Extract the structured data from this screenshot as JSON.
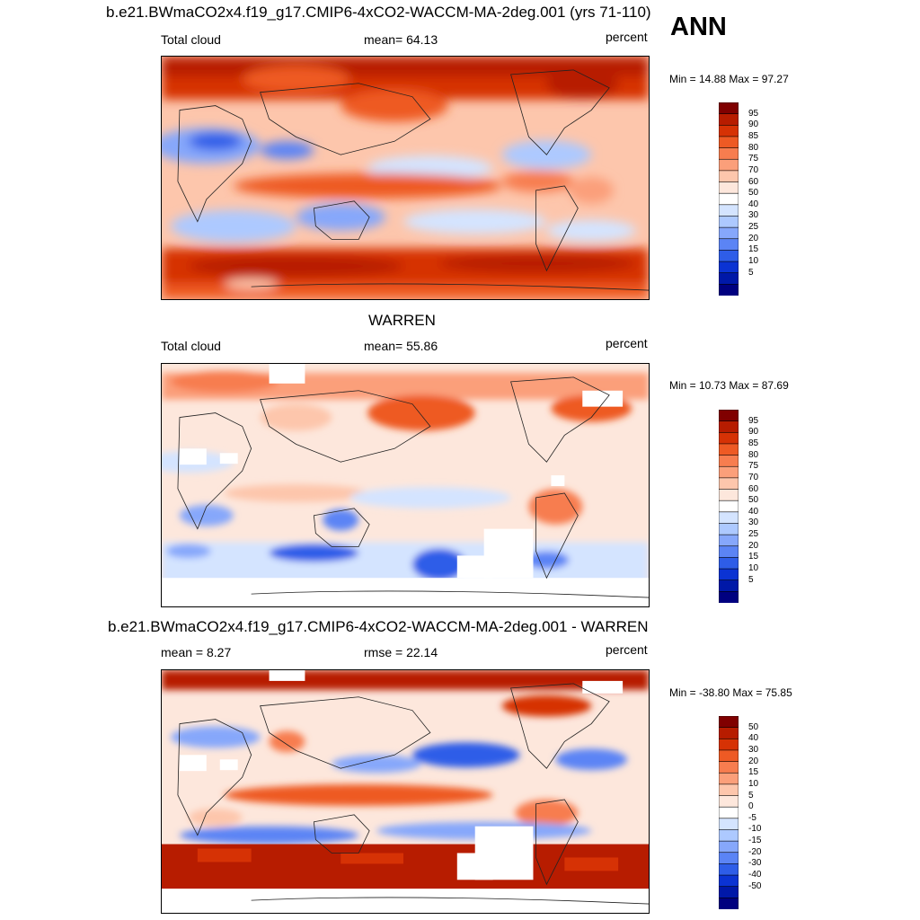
{
  "figure": {
    "title": "b.e21.BWmaCO2x4.f19_g17.CMIP6-4xCO2-WACCM-MA-2deg.001 (yrs 71-110)",
    "season": "ANN"
  },
  "panel1": {
    "left_label": "Total cloud",
    "center_label": "mean=  64.13",
    "right_label": "percent",
    "range_label": "Min =  14.88 Max =  97.27"
  },
  "panel2": {
    "title": "WARREN",
    "left_label": "Total cloud",
    "center_label": "mean=  55.86",
    "right_label": "percent",
    "range_label": "Min =  10.73 Max =  87.69"
  },
  "panel3": {
    "title": "b.e21.BWmaCO2x4.f19_g17.CMIP6-4xCO2-WACCM-MA-2deg.001 - WARREN",
    "left_label": "mean =   8.27",
    "center_label": "rmse =  22.14",
    "right_label": "percent",
    "range_label": "Min = -38.80 Max =  75.85"
  },
  "colorbar_abs": {
    "levels": [
      "95",
      "90",
      "85",
      "80",
      "75",
      "70",
      "60",
      "50",
      "40",
      "30",
      "25",
      "20",
      "15",
      "10",
      "5"
    ],
    "colors": [
      "#800000",
      "#b71c00",
      "#d63205",
      "#ee5a24",
      "#f77d4f",
      "#fb9f7a",
      "#fdc6ac",
      "#fde7dc",
      "#ffffff",
      "#d4e4ff",
      "#adc9ff",
      "#86a7fb",
      "#5b84f5",
      "#2e5de8",
      "#0b33d3",
      "#0018a8",
      "#000080"
    ]
  },
  "colorbar_diff": {
    "levels": [
      "50",
      "40",
      "30",
      "20",
      "15",
      "10",
      "5",
      "0",
      "-5",
      "-10",
      "-15",
      "-20",
      "-30",
      "-40",
      "-50"
    ],
    "colors": [
      "#800000",
      "#b71c00",
      "#d63205",
      "#ee5a24",
      "#f77d4f",
      "#fb9f7a",
      "#fdc6ac",
      "#fde7dc",
      "#ffffff",
      "#d4e4ff",
      "#adc9ff",
      "#86a7fb",
      "#5b84f5",
      "#2e5de8",
      "#0b33d3",
      "#0018a8",
      "#000080"
    ]
  }
}
